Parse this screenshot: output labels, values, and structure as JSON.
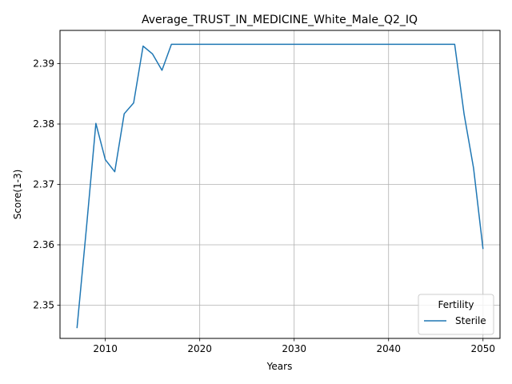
{
  "chart_data": {
    "type": "line",
    "title": "Average_TRUST_IN_MEDICINE_White_Male_Q2_IQ",
    "xlabel": "Years",
    "ylabel": "Score(1-3)",
    "xlim": [
      2005.2,
      2051.8
    ],
    "ylim": [
      2.3445,
      2.3955
    ],
    "x_ticks": [
      2010,
      2020,
      2030,
      2040,
      2050
    ],
    "y_ticks": [
      2.35,
      2.36,
      2.37,
      2.38,
      2.39
    ],
    "x_tick_labels": [
      "2010",
      "2020",
      "2030",
      "2040",
      "2050"
    ],
    "y_tick_labels": [
      "2.35",
      "2.36",
      "2.37",
      "2.38",
      "2.39"
    ],
    "grid": true,
    "legend": {
      "title": "Fertility",
      "placement": "lower-right"
    },
    "series": [
      {
        "name": "Sterile",
        "color": "#1f77b4",
        "x": [
          2007,
          2008,
          2009,
          2010,
          2011,
          2012,
          2013,
          2014,
          2015,
          2016,
          2017,
          2018,
          2019,
          2020,
          2025,
          2030,
          2035,
          2040,
          2045,
          2046,
          2047,
          2048,
          2049,
          2050
        ],
        "values": [
          2.3462,
          2.3628,
          2.3801,
          2.3741,
          2.3721,
          2.3817,
          2.3835,
          2.3929,
          2.3916,
          2.3889,
          2.3932,
          2.3932,
          2.3932,
          2.3932,
          2.3932,
          2.3932,
          2.3932,
          2.3932,
          2.3932,
          2.3932,
          2.3932,
          2.3816,
          2.3727,
          2.3593
        ]
      }
    ]
  }
}
